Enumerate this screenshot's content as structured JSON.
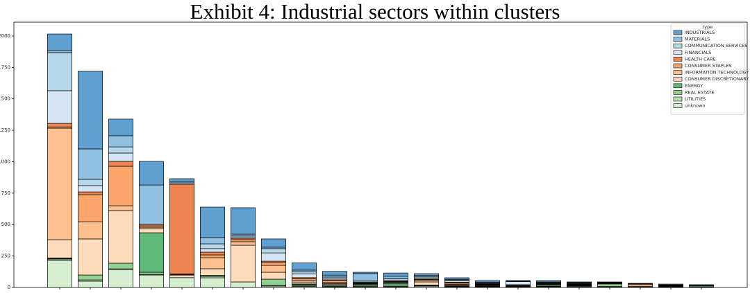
{
  "chart_data": {
    "type": "stacked_bar",
    "title": "Exhibit 4: Industrial sectors within clusters",
    "legend_title": "type",
    "legend_position": "upper right",
    "categories": [
      null,
      null,
      null,
      null,
      null,
      null,
      null,
      null,
      null,
      null,
      null,
      null,
      null,
      null,
      null,
      null,
      null,
      null,
      null,
      null,
      null,
      null
    ],
    "ylim": [
      0,
      2110
    ],
    "yticks": [
      0,
      250,
      500,
      750,
      1000,
      1250,
      1500,
      1750,
      2000
    ],
    "series": [
      {
        "name": "INDUSTRIALS",
        "color": "#5fa0d0",
        "values": [
          132,
          617,
          132,
          188,
          22,
          242,
          210,
          66,
          57,
          30,
          10,
          26,
          15,
          12,
          12,
          5,
          11,
          5,
          4,
          0,
          6,
          3
        ]
      },
      {
        "name": "MATERIALS",
        "color": "#8fc0e2",
        "values": [
          16,
          242,
          89,
          314,
          11,
          50,
          11,
          11,
          15,
          15,
          60,
          20,
          8,
          5,
          5,
          0,
          3,
          3,
          3,
          0,
          0,
          0
        ]
      },
      {
        "name": "COMMUNICATION SERVICES",
        "color": "#b5d8ea",
        "values": [
          303,
          50,
          49,
          0,
          11,
          38,
          11,
          34,
          15,
          10,
          8,
          10,
          10,
          8,
          5,
          3,
          3,
          3,
          3,
          0,
          3,
          0
        ]
      },
      {
        "name": "FINANCIALS",
        "color": "#d6e5f3",
        "values": [
          260,
          50,
          66,
          0,
          0,
          28,
          11,
          66,
          30,
          12,
          5,
          10,
          10,
          10,
          5,
          25,
          5,
          5,
          3,
          0,
          3,
          0
        ]
      },
      {
        "name": "HEALTH CARE",
        "color": "#ee8550",
        "values": [
          28,
          22,
          39,
          11,
          713,
          22,
          11,
          11,
          10,
          5,
          3,
          3,
          5,
          5,
          3,
          3,
          3,
          3,
          0,
          3,
          0,
          0
        ]
      },
      {
        "name": "CONSUMER STAPLES",
        "color": "#fba56a",
        "values": [
          10,
          215,
          314,
          11,
          5,
          22,
          16,
          22,
          10,
          15,
          3,
          3,
          8,
          10,
          3,
          3,
          3,
          3,
          0,
          5,
          3,
          0
        ]
      },
      {
        "name": "INFORMATION TECHNOLOGY",
        "color": "#fdc08e",
        "values": [
          887,
          137,
          38,
          11,
          5,
          88,
          28,
          55,
          15,
          10,
          3,
          5,
          10,
          5,
          3,
          5,
          3,
          3,
          0,
          15,
          3,
          0
        ]
      },
      {
        "name": "CONSUMER DISCRETIONARY",
        "color": "#fddbbb",
        "values": [
          145,
          287,
          419,
          33,
          20,
          52,
          292,
          55,
          15,
          8,
          5,
          5,
          25,
          8,
          3,
          3,
          3,
          3,
          0,
          5,
          3,
          0
        ]
      },
      {
        "name": "ENERGY",
        "color": "#5fba7a",
        "values": [
          5,
          0,
          0,
          314,
          0,
          0,
          0,
          0,
          5,
          5,
          8,
          15,
          3,
          3,
          5,
          3,
          10,
          3,
          3,
          0,
          3,
          5
        ]
      },
      {
        "name": "REAL ESTATE",
        "color": "#92cf92",
        "values": [
          5,
          39,
          45,
          17,
          0,
          10,
          0,
          50,
          10,
          8,
          8,
          10,
          3,
          3,
          3,
          0,
          3,
          5,
          20,
          0,
          0,
          8
        ]
      },
      {
        "name": "UTILITIES",
        "color": "#b9e2b2",
        "values": [
          10,
          10,
          5,
          5,
          0,
          10,
          0,
          5,
          5,
          5,
          3,
          3,
          3,
          3,
          3,
          0,
          3,
          3,
          3,
          0,
          0,
          3
        ]
      },
      {
        "name": "unknown",
        "color": "#d6eed0",
        "values": [
          215,
          50,
          143,
          99,
          78,
          77,
          44,
          11,
          8,
          5,
          5,
          5,
          10,
          5,
          5,
          5,
          5,
          5,
          5,
          5,
          3,
          3
        ]
      }
    ]
  }
}
